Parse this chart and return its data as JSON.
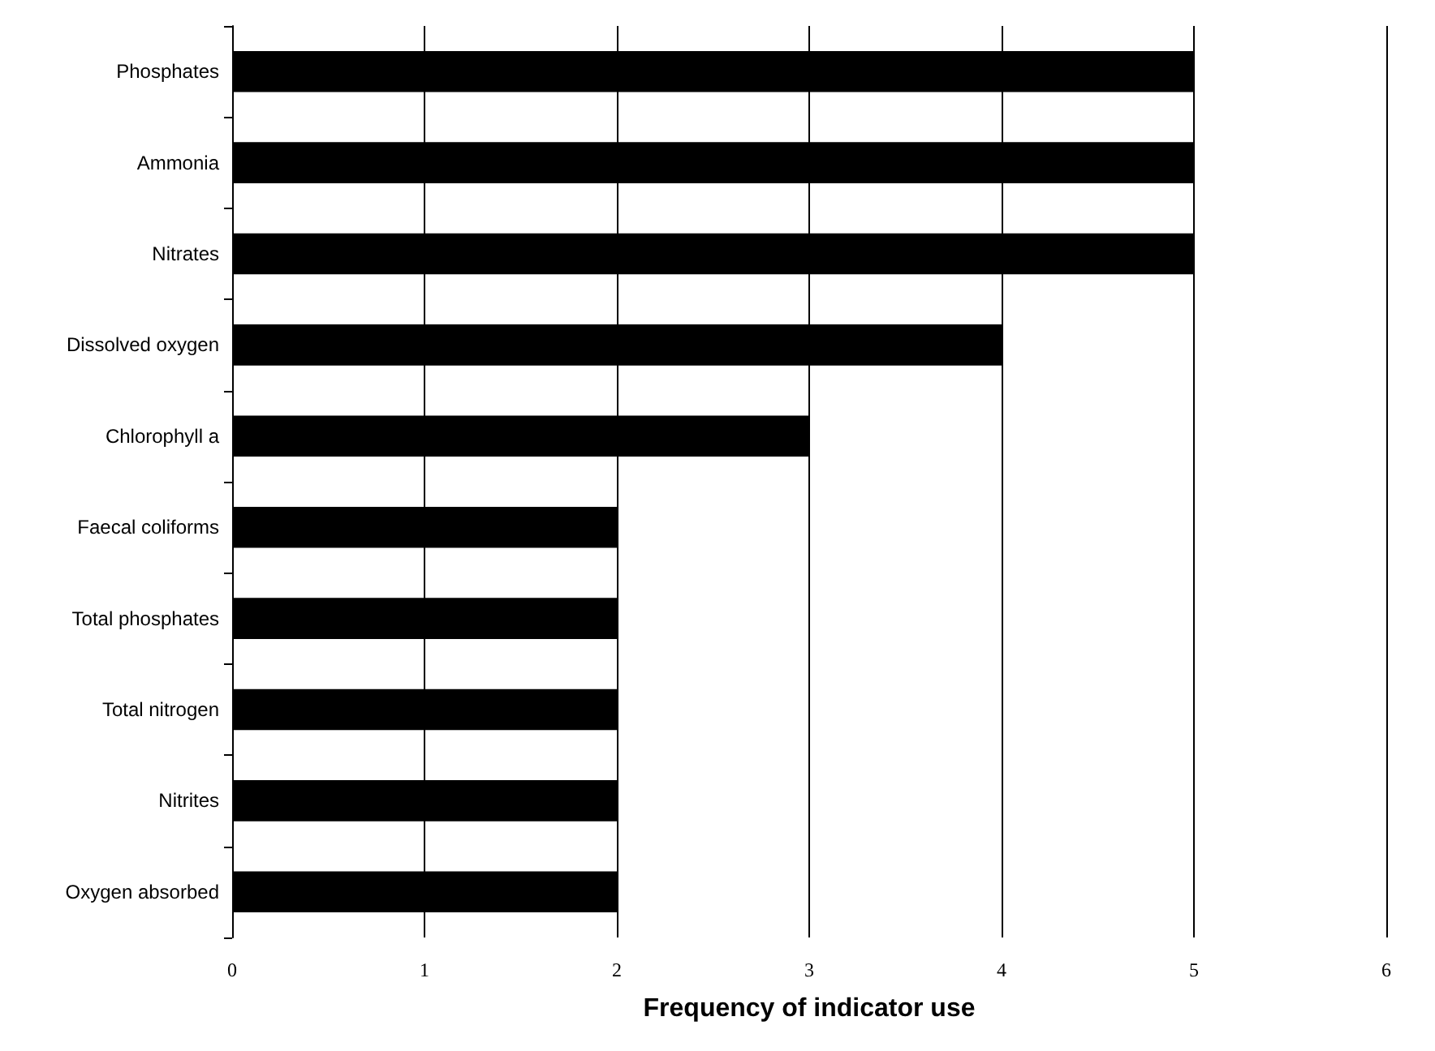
{
  "chart_data": {
    "type": "bar",
    "orientation": "horizontal",
    "xlabel": "Frequency of indicator use",
    "categories": [
      "Phosphates",
      "Ammonia",
      "Nitrates",
      "Dissolved oxygen",
      "Chlorophyll a",
      "Faecal coliforms",
      "Total phosphates",
      "Total nitrogen",
      "Nitrites",
      "Oxygen absorbed"
    ],
    "values": [
      5,
      5,
      5,
      4,
      3,
      2,
      2,
      2,
      2,
      2
    ],
    "color": "#000000",
    "xlim": [
      0,
      6
    ],
    "xticks": [
      0,
      1,
      2,
      3,
      4,
      5,
      6
    ],
    "grid": "x"
  }
}
